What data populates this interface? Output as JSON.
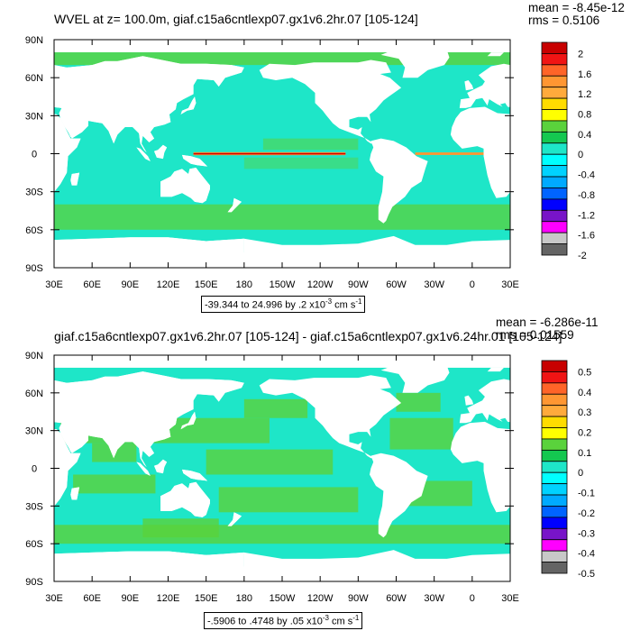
{
  "plots": [
    {
      "title": "WVEL at z= 100.0m, giaf.c15a6cntlexp07.gx1v6.2hr.07 [105-124]",
      "mean": "mean = -8.45e-12",
      "rms": "rms = 0.5106",
      "range_text": "-39.344 to 24.996 by .2 x10",
      "range_exp": "-3",
      "range_units": " cm s",
      "range_units_exp": "-1",
      "lat_labels": [
        "90N",
        "60N",
        "30N",
        "0",
        "30S",
        "60S",
        "90S"
      ],
      "lon_labels": [
        "30E",
        "60E",
        "90E",
        "120E",
        "150E",
        "180",
        "150W",
        "120W",
        "90W",
        "60W",
        "30W",
        "0",
        "30E"
      ],
      "colorbar_labels": [
        "2",
        "1.6",
        "1.2",
        "0.8",
        "0.4",
        "0",
        "-0.4",
        "-0.8",
        "-1.2",
        "-1.6",
        "-2"
      ],
      "ocean_color": "#1ee6c8",
      "highlight_color": "#5ad23c"
    },
    {
      "title": "giaf.c15a6cntlexp07.gx1v6.2hr.07 [105-124] - giaf.c15a6cntlexp07.gx1v6.24hr.01 [105-124]",
      "mean": "mean = -6.286e-11",
      "rms": "rms = 0.01559",
      "range_text": "-.5906 to .4748 by .05 x10",
      "range_exp": "-3",
      "range_units": " cm s",
      "range_units_exp": "-1",
      "lat_labels": [
        "90N",
        "60N",
        "30N",
        "0",
        "30S",
        "60S",
        "90S"
      ],
      "lon_labels": [
        "30E",
        "60E",
        "90E",
        "120E",
        "150E",
        "180",
        "150W",
        "120W",
        "90W",
        "60W",
        "30W",
        "0",
        "30E"
      ],
      "colorbar_labels": [
        "0.5",
        "0.4",
        "0.3",
        "0.2",
        "0.1",
        "0",
        "-0.1",
        "-0.2",
        "-0.3",
        "-0.4",
        "-0.5"
      ],
      "ocean_color": "#1ee6c8",
      "highlight_color": "#5ad23c"
    }
  ],
  "colorbar_colors": [
    "#c80000",
    "#f01414",
    "#ff6428",
    "#ff9632",
    "#ffaa3c",
    "#ffdc00",
    "#ffff00",
    "#5ad23c",
    "#14c850",
    "#1ee6c8",
    "#00ffff",
    "#00d2ff",
    "#00aaff",
    "#0064ff",
    "#0000ff",
    "#7814c8",
    "#ff00ff",
    "#c8c8c8",
    "#646464"
  ],
  "chart_data": [
    {
      "type": "heatmap",
      "title": "WVEL at z= 100.0m, giaf.c15a6cntlexp07.gx1v6.2hr.07 [105-124]",
      "x_tick_labels": [
        "30E",
        "60E",
        "90E",
        "120E",
        "150E",
        "180",
        "150W",
        "120W",
        "90W",
        "60W",
        "30W",
        "0",
        "30E"
      ],
      "y_tick_labels": [
        "90N",
        "60N",
        "30N",
        "0",
        "30S",
        "60S",
        "90S"
      ],
      "colorbar_levels": [
        2,
        1.6,
        1.2,
        0.8,
        0.4,
        0,
        -0.4,
        -0.8,
        -1.2,
        -1.6,
        -2
      ],
      "mean": -8.45e-12,
      "rms": 0.5106,
      "contour_min": -39.344,
      "contour_max": 24.996,
      "contour_interval": 0.2
    },
    {
      "type": "heatmap",
      "title": "giaf.c15a6cntlexp07.gx1v6.2hr.07 [105-124] - giaf.c15a6cntlexp07.gx1v6.24hr.01 [105-124]",
      "x_tick_labels": [
        "30E",
        "60E",
        "90E",
        "120E",
        "150E",
        "180",
        "150W",
        "120W",
        "90W",
        "60W",
        "30W",
        "0",
        "30E"
      ],
      "y_tick_labels": [
        "90N",
        "60N",
        "30N",
        "0",
        "30S",
        "60S",
        "90S"
      ],
      "colorbar_levels": [
        0.5,
        0.4,
        0.3,
        0.2,
        0.1,
        0,
        -0.1,
        -0.2,
        -0.3,
        -0.4,
        -0.5
      ],
      "mean": -6.286e-11,
      "rms": 0.01559,
      "contour_min": -0.5906,
      "contour_max": 0.4748,
      "contour_interval": 0.05
    }
  ]
}
